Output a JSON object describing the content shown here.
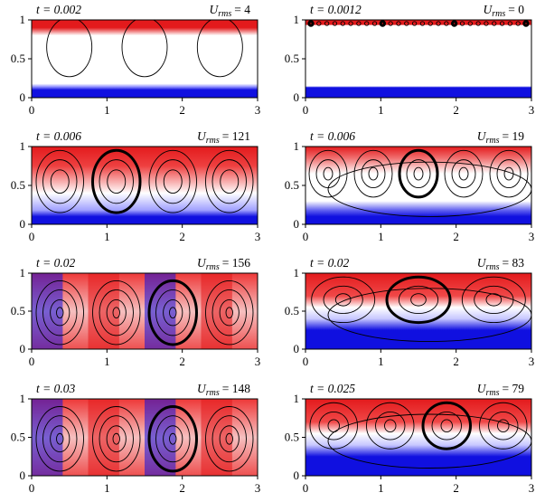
{
  "figure": {
    "panels": [
      {
        "id": "p1",
        "t_text": "t = 0.002",
        "u_text": "Urms = 4",
        "u_sym": "U",
        "u_sub": "rms",
        "u_val": "= 4",
        "x_ticks": [
          "0",
          "1",
          "2",
          "3"
        ],
        "y_ticks": [
          "0",
          "0.5",
          "1"
        ],
        "state": "early",
        "cells": 3
      },
      {
        "id": "p2",
        "t_text": "t = 0.0012",
        "u_text": "Urms = 0",
        "u_sym": "U",
        "u_sub": "rms",
        "u_val": "= 0",
        "x_ticks": [
          "0",
          "1",
          "2",
          "3"
        ],
        "y_ticks": [
          "0",
          "0.5",
          "1"
        ],
        "state": "initial",
        "cells": 0
      },
      {
        "id": "p3",
        "t_text": "t = 0.006",
        "u_text": "Urms = 121",
        "u_sym": "U",
        "u_sub": "rms",
        "u_val": "= 121",
        "x_ticks": [
          "0",
          "1",
          "2",
          "3"
        ],
        "y_ticks": [
          "0",
          "0.5",
          "1"
        ],
        "state": "cells",
        "cells": 4
      },
      {
        "id": "p4",
        "t_text": "t = 0.006",
        "u_text": "Urms = 19",
        "u_sym": "U",
        "u_sub": "rms",
        "u_val": "= 19",
        "x_ticks": [
          "0",
          "1",
          "2",
          "3"
        ],
        "y_ticks": [
          "0",
          "0.5",
          "1"
        ],
        "state": "plumes",
        "cells": 5
      },
      {
        "id": "p5",
        "t_text": "t = 0.02",
        "u_text": "Urms = 156",
        "u_sym": "U",
        "u_sub": "rms",
        "u_val": "= 156",
        "x_ticks": [
          "0",
          "1",
          "2",
          "3"
        ],
        "y_ticks": [
          "0",
          "0.5",
          "1"
        ],
        "state": "mixed",
        "cells": 4
      },
      {
        "id": "p6",
        "t_text": "t = 0.02",
        "u_text": "Urms = 83",
        "u_sym": "U",
        "u_sub": "rms",
        "u_val": "= 83",
        "x_ticks": [
          "0",
          "1",
          "2",
          "3"
        ],
        "y_ticks": [
          "0",
          "0.5",
          "1"
        ],
        "state": "layered",
        "cells": 3
      },
      {
        "id": "p7",
        "t_text": "t = 0.03",
        "u_text": "Urms = 148",
        "u_sym": "U",
        "u_sub": "rms",
        "u_val": "= 148",
        "x_ticks": [
          "0",
          "1",
          "2",
          "3"
        ],
        "y_ticks": [
          "0",
          "0.5",
          "1"
        ],
        "state": "mixed",
        "cells": 4
      },
      {
        "id": "p8",
        "t_text": "t = 0.025",
        "u_text": "Urms = 79",
        "u_sym": "U",
        "u_sub": "rms",
        "u_val": "= 79",
        "x_ticks": [
          "0",
          "1",
          "2",
          "3"
        ],
        "y_ticks": [
          "0",
          "0.5",
          "1"
        ],
        "state": "layered",
        "cells": 4
      }
    ],
    "colors": {
      "hot": "#e31a1c",
      "cold": "#1010e0",
      "mid": "#ffffff"
    }
  }
}
